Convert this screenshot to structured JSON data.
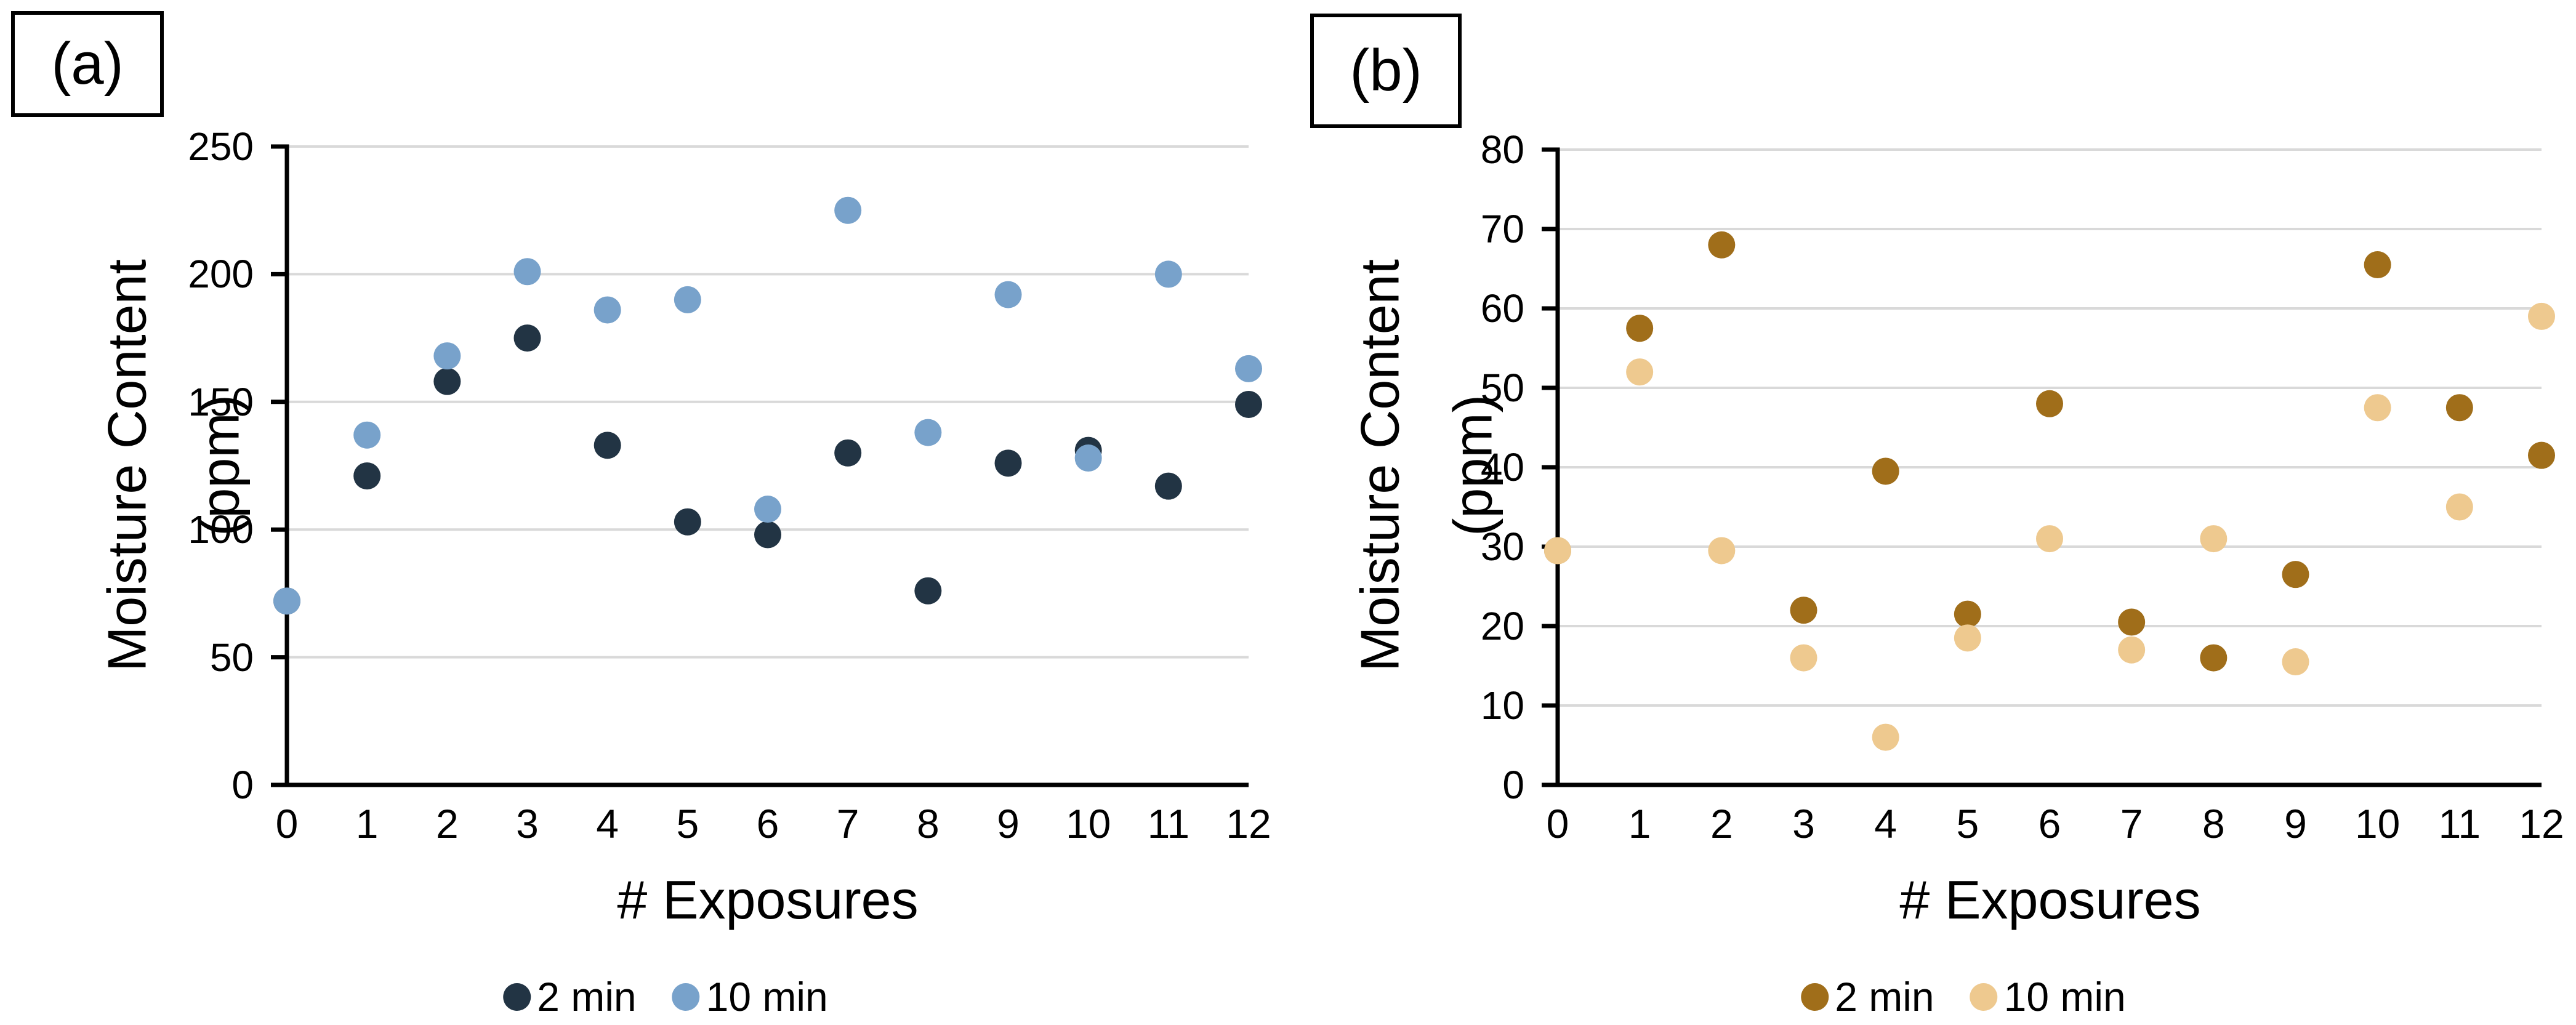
{
  "chart_data": [
    {
      "id": "a",
      "type": "scatter",
      "panel_label": "(a)",
      "xlabel": "# Exposures",
      "ylabel": "Moisture Content (ppm)",
      "ylabel_lines": [
        "Moisture Content",
        "(ppm)"
      ],
      "xlim": [
        0,
        12
      ],
      "ylim": [
        0,
        250
      ],
      "x_ticks": [
        0,
        1,
        2,
        3,
        4,
        5,
        6,
        7,
        8,
        9,
        10,
        11,
        12
      ],
      "y_ticks": [
        0,
        50,
        100,
        150,
        200,
        250
      ],
      "grid": true,
      "legend_position": "bottom",
      "x": [
        0,
        1,
        2,
        3,
        4,
        5,
        6,
        7,
        8,
        9,
        10,
        11,
        12
      ],
      "series": [
        {
          "name": "2 min",
          "color": "#223444",
          "values": [
            72,
            121,
            158,
            175,
            133,
            103,
            98,
            130,
            76,
            126,
            131,
            117,
            149
          ]
        },
        {
          "name": "10 min",
          "color": "#78A2CB",
          "values": [
            72,
            137,
            168,
            201,
            186,
            190,
            108,
            225,
            138,
            192,
            128,
            200,
            163
          ]
        }
      ]
    },
    {
      "id": "b",
      "type": "scatter",
      "panel_label": "(b)",
      "xlabel": "# Exposures",
      "ylabel": "Moisture Content (ppm)",
      "ylabel_lines": [
        "Moisture Content",
        "(ppm)"
      ],
      "xlim": [
        0,
        12
      ],
      "ylim": [
        0,
        80
      ],
      "x_ticks": [
        0,
        1,
        2,
        3,
        4,
        5,
        6,
        7,
        8,
        9,
        10,
        11,
        12
      ],
      "y_ticks": [
        0,
        10,
        20,
        30,
        40,
        50,
        60,
        70,
        80
      ],
      "grid": true,
      "legend_position": "bottom",
      "x": [
        0,
        1,
        2,
        3,
        4,
        5,
        6,
        7,
        8,
        9,
        10,
        11,
        12
      ],
      "series": [
        {
          "name": "2 min",
          "color": "#A06E1A",
          "values": [
            29.5,
            57.5,
            68,
            22,
            39.5,
            21.5,
            48,
            20.5,
            16,
            26.5,
            65.5,
            47.5,
            41.5
          ]
        },
        {
          "name": "10 min",
          "color": "#EEC98F",
          "values": [
            29.5,
            52,
            29.5,
            16,
            6,
            18.5,
            31,
            17,
            31,
            15.5,
            47.5,
            35,
            59
          ]
        }
      ]
    }
  ]
}
